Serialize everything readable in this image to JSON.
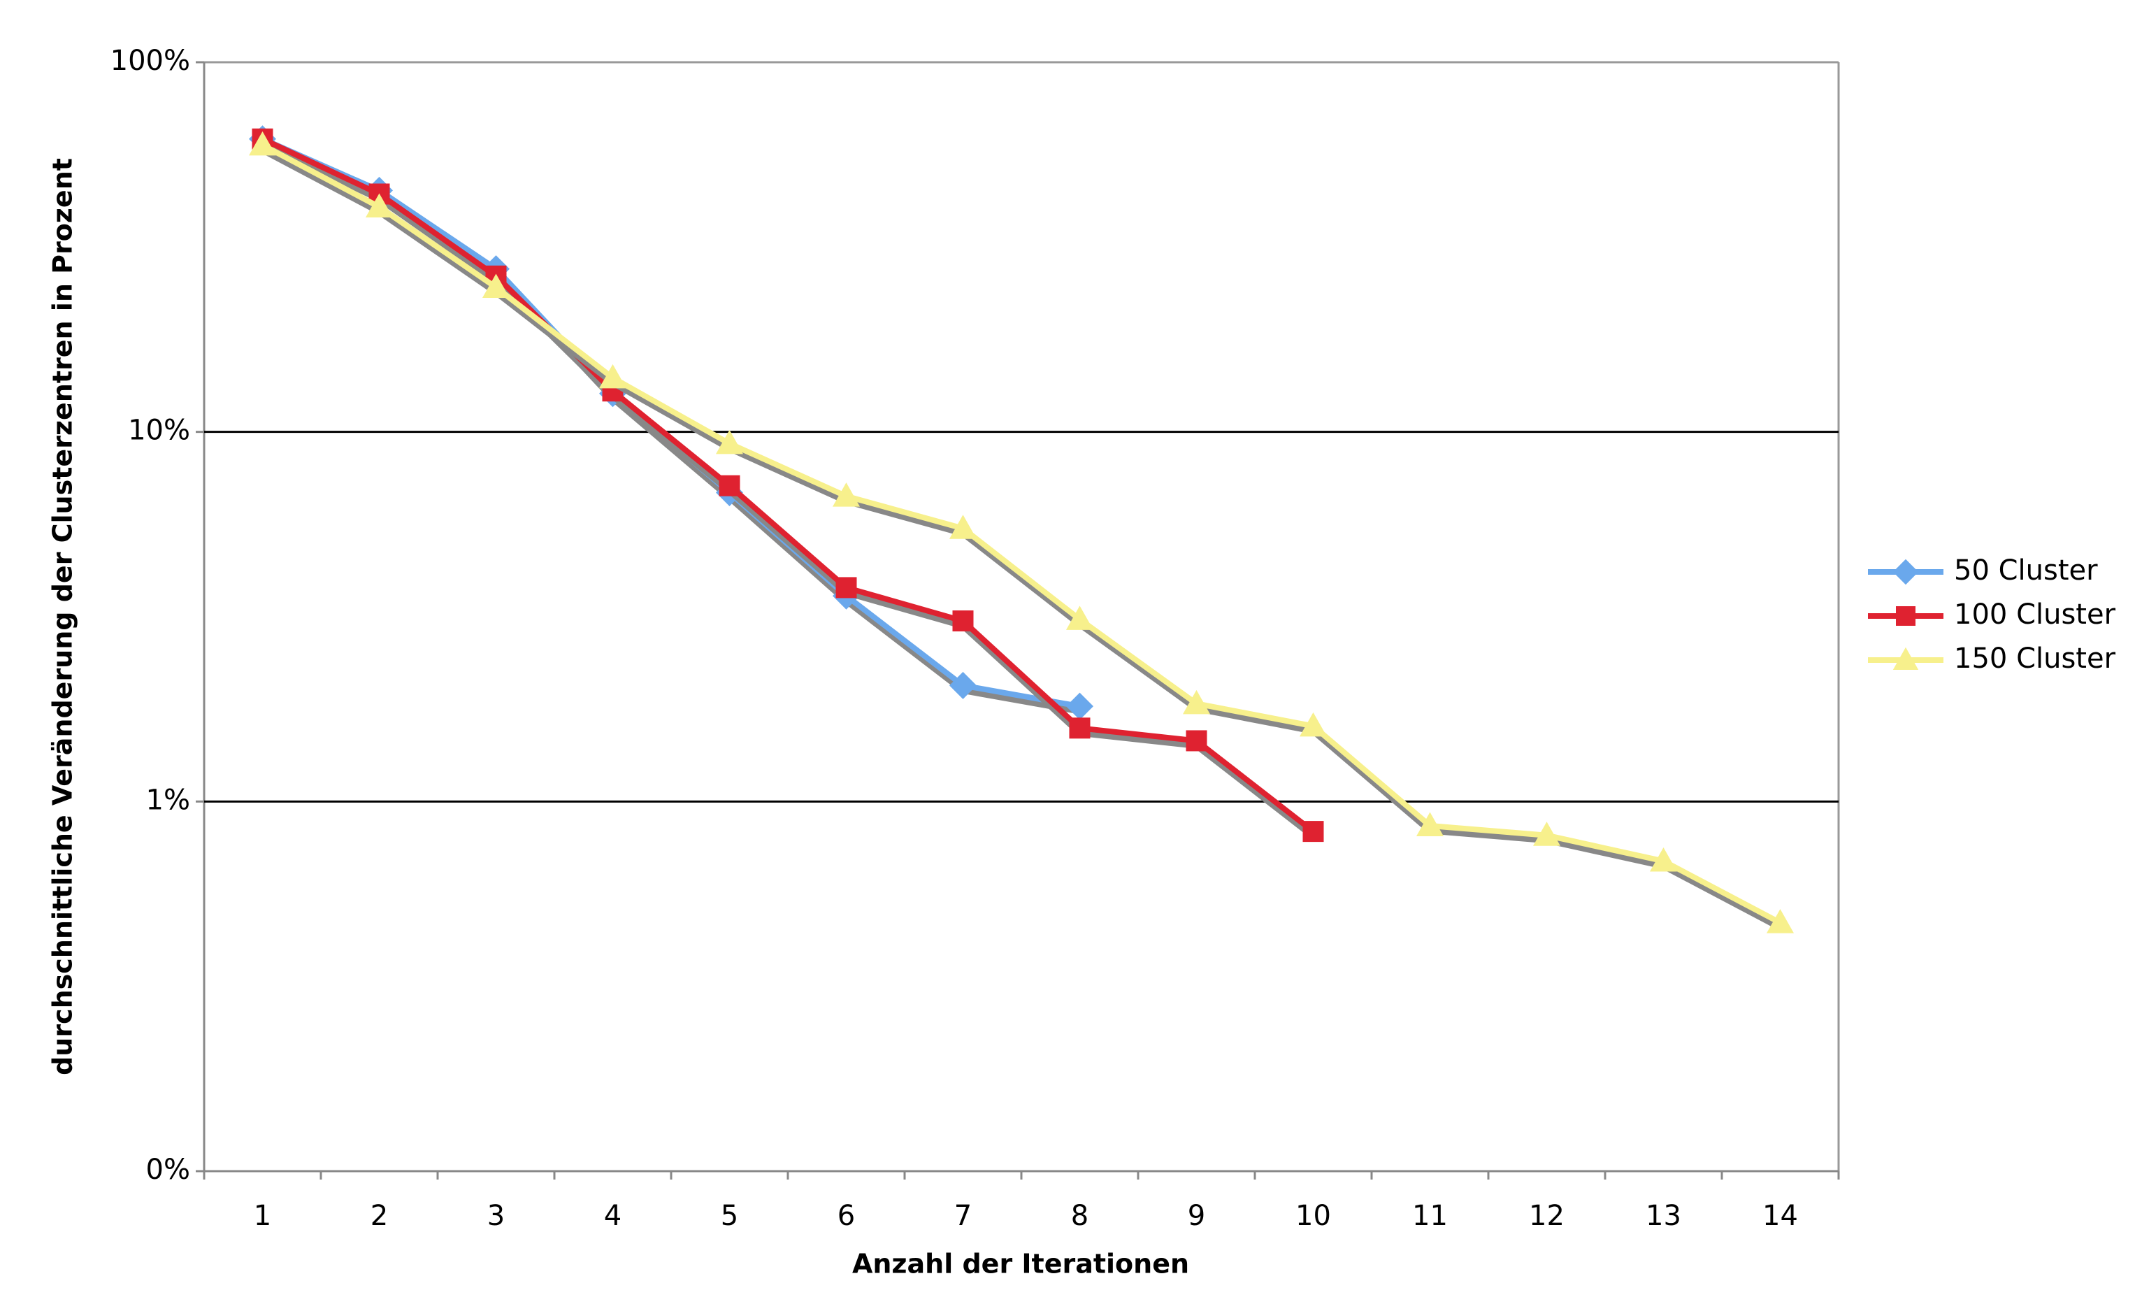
{
  "chart_data": {
    "type": "line",
    "xlabel": "Anzahl der Iterationen",
    "ylabel": "durchschnittliche Veränderung der Clusterzentren in Prozent",
    "categories": [
      "1",
      "2",
      "3",
      "4",
      "5",
      "6",
      "7",
      "8",
      "9",
      "10",
      "11",
      "12",
      "13",
      "14"
    ],
    "series": [
      {
        "name": "50 Cluster",
        "color": "#6aa8ec",
        "marker": "diamond",
        "values": [
          62,
          45,
          27.6,
          12.7,
          6.85,
          3.6,
          2.06,
          1.81,
          null,
          null,
          null,
          null,
          null,
          null
        ]
      },
      {
        "name": "100 Cluster",
        "color": "#df2230",
        "marker": "square",
        "values": [
          62,
          44,
          26.4,
          12.9,
          7.15,
          3.79,
          3.08,
          1.58,
          1.46,
          0.83,
          null,
          null,
          null,
          null
        ]
      },
      {
        "name": "150 Cluster",
        "color": "#f7f08c",
        "marker": "triangle",
        "values": [
          59.7,
          40.6,
          24.6,
          14,
          9.3,
          6.7,
          5.48,
          3.11,
          1.84,
          1.6,
          0.86,
          0.81,
          0.69,
          0.47
        ]
      }
    ],
    "ylim": [
      0.1,
      100
    ],
    "yticks": [
      {
        "value": 0.1,
        "label": "0%"
      },
      {
        "value": 1,
        "label": "1%"
      },
      {
        "value": 10,
        "label": "10%"
      },
      {
        "value": 100,
        "label": "100%"
      }
    ],
    "log_y": true,
    "grid": true,
    "legend": "right"
  }
}
